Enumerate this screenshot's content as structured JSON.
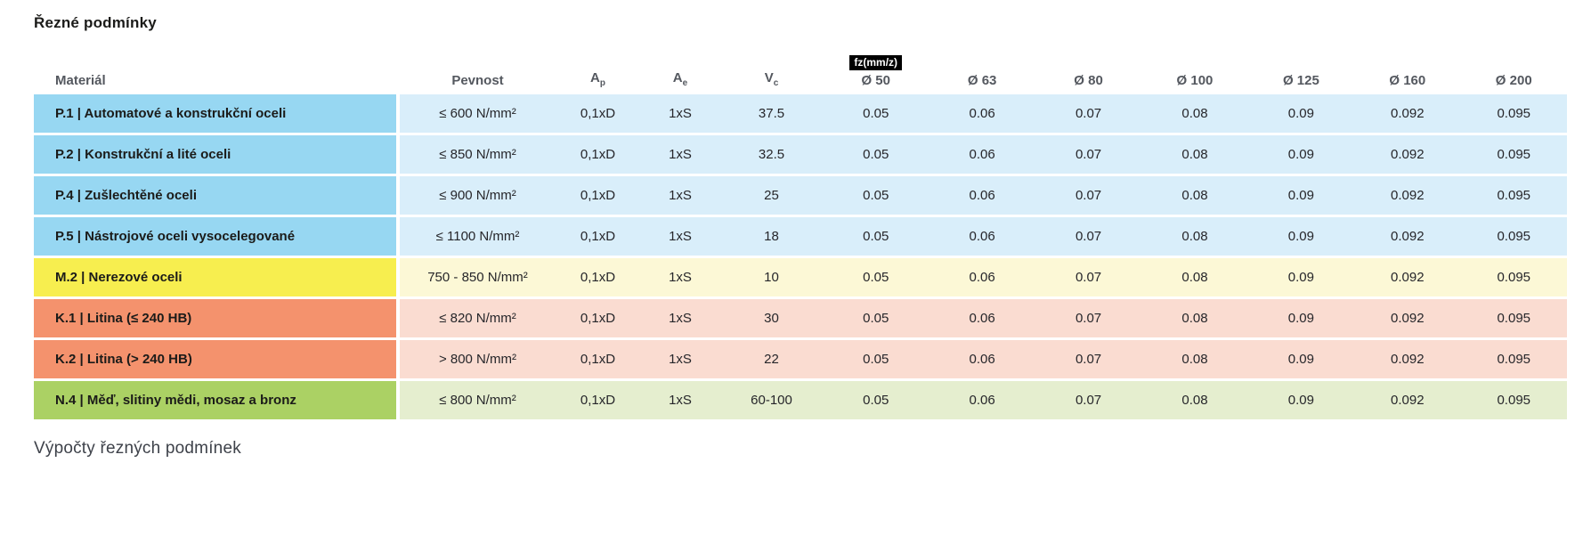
{
  "page": {
    "title": "Řezné podmínky",
    "footer_heading": "Výpočty řezných podmínek"
  },
  "colors": {
    "blue_label": "#97d7f2",
    "blue_row": "#d9eefa",
    "yellow_label": "#f7ee4f",
    "yellow_row": "#fcf8d6",
    "salmon_label": "#f4926d",
    "salmon_row": "#fadcd1",
    "green_label": "#abd164",
    "green_row": "#e5eecf",
    "header_text": "#54585f",
    "badge_bg": "#000000",
    "badge_text": "#ffffff"
  },
  "table": {
    "fz_badge": "fz(mm/z)",
    "headers": {
      "material": "Materiál",
      "strength": "Pevnost",
      "ap": {
        "base": "A",
        "sub": "p"
      },
      "ae": {
        "base": "A",
        "sub": "e"
      },
      "vc": {
        "base": "V",
        "sub": "c"
      },
      "diameters": [
        "Ø 50",
        "Ø 63",
        "Ø 80",
        "Ø 100",
        "Ø 125",
        "Ø 160",
        "Ø 200"
      ]
    },
    "rows": [
      {
        "material": "P.1 | Automatové a konstrukční oceli",
        "strength": "≤ 600 N/mm²",
        "ap": "0,1xD",
        "ae": "1xS",
        "vc": "37.5",
        "fz": [
          "0.05",
          "0.06",
          "0.07",
          "0.08",
          "0.09",
          "0.092",
          "0.095"
        ],
        "label_color": "#97d7f2",
        "row_color": "#d9eefa"
      },
      {
        "material": "P.2 | Konstrukční a lité oceli",
        "strength": "≤ 850 N/mm²",
        "ap": "0,1xD",
        "ae": "1xS",
        "vc": "32.5",
        "fz": [
          "0.05",
          "0.06",
          "0.07",
          "0.08",
          "0.09",
          "0.092",
          "0.095"
        ],
        "label_color": "#97d7f2",
        "row_color": "#d9eefa"
      },
      {
        "material": "P.4 | Zušlechtěné oceli",
        "strength": "≤ 900 N/mm²",
        "ap": "0,1xD",
        "ae": "1xS",
        "vc": "25",
        "fz": [
          "0.05",
          "0.06",
          "0.07",
          "0.08",
          "0.09",
          "0.092",
          "0.095"
        ],
        "label_color": "#97d7f2",
        "row_color": "#d9eefa"
      },
      {
        "material": "P.5 | Nástrojové oceli vysocelegované",
        "strength": "≤ 1100 N/mm²",
        "ap": "0,1xD",
        "ae": "1xS",
        "vc": "18",
        "fz": [
          "0.05",
          "0.06",
          "0.07",
          "0.08",
          "0.09",
          "0.092",
          "0.095"
        ],
        "label_color": "#97d7f2",
        "row_color": "#d9eefa"
      },
      {
        "material": "M.2 | Nerezové oceli",
        "strength": "750 - 850 N/mm²",
        "ap": "0,1xD",
        "ae": "1xS",
        "vc": "10",
        "fz": [
          "0.05",
          "0.06",
          "0.07",
          "0.08",
          "0.09",
          "0.092",
          "0.095"
        ],
        "label_color": "#f7ee4f",
        "row_color": "#fcf8d6"
      },
      {
        "material": "K.1 | Litina (≤ 240 HB)",
        "strength": "≤ 820 N/mm²",
        "ap": "0,1xD",
        "ae": "1xS",
        "vc": "30",
        "fz": [
          "0.05",
          "0.06",
          "0.07",
          "0.08",
          "0.09",
          "0.092",
          "0.095"
        ],
        "label_color": "#f4926d",
        "row_color": "#fadcd1"
      },
      {
        "material": "K.2 | Litina (> 240 HB)",
        "strength": "> 800 N/mm²",
        "ap": "0,1xD",
        "ae": "1xS",
        "vc": "22",
        "fz": [
          "0.05",
          "0.06",
          "0.07",
          "0.08",
          "0.09",
          "0.092",
          "0.095"
        ],
        "label_color": "#f4926d",
        "row_color": "#fadcd1"
      },
      {
        "material": "N.4 | Měď, slitiny mědi, mosaz a bronz",
        "strength": "≤ 800 N/mm²",
        "ap": "0,1xD",
        "ae": "1xS",
        "vc": "60-100",
        "fz": [
          "0.05",
          "0.06",
          "0.07",
          "0.08",
          "0.09",
          "0.092",
          "0.095"
        ],
        "label_color": "#abd164",
        "row_color": "#e5eecf"
      }
    ]
  }
}
